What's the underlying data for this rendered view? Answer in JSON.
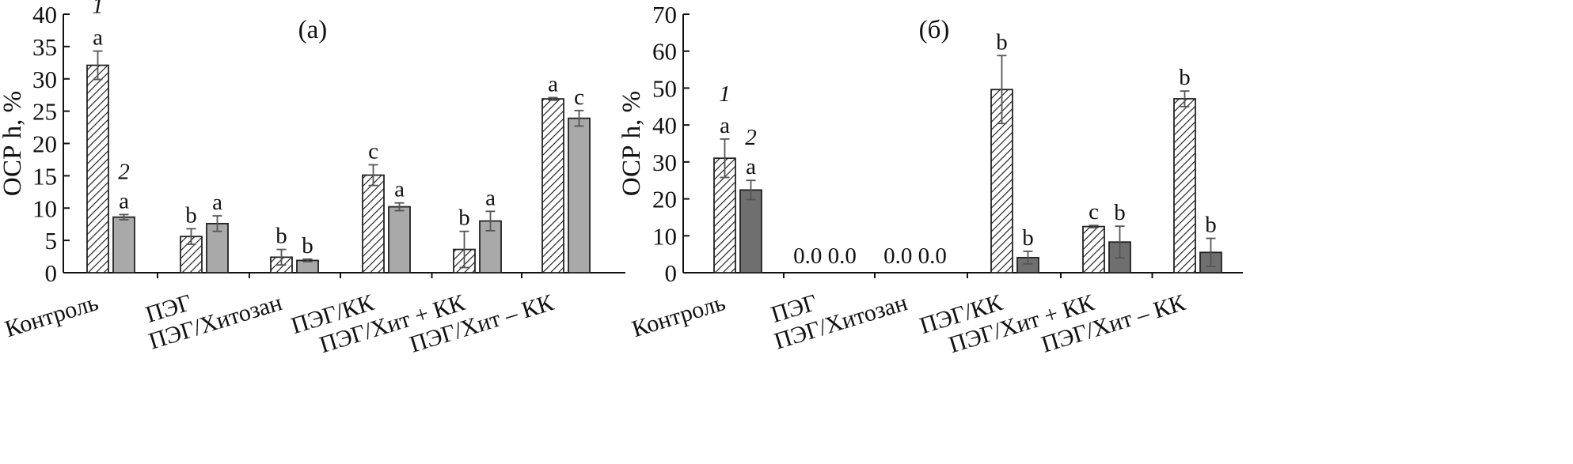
{
  "chart_data": [
    {
      "type": "bar",
      "panel_label": "(a)",
      "ylabel": "ОСР h, %",
      "ylim": [
        0,
        40
      ],
      "yticks": [
        "0",
        "5",
        "10",
        "15",
        "20",
        "25",
        "30",
        "35",
        "40"
      ],
      "categories": [
        "Контроль",
        "ПЭГ",
        "ПЭГ/Хитозан",
        "ПЭГ/КК",
        "ПЭГ/Хит + КК",
        "ПЭГ/Хит – КК"
      ],
      "series": [
        {
          "marker": "1",
          "pattern": "hatched",
          "values": [
            32.1,
            5.6,
            2.4,
            15.1,
            3.6,
            26.9
          ],
          "errors": [
            2.2,
            1.2,
            1.2,
            1.6,
            2.8,
            0.2
          ],
          "letters": [
            "a",
            "b",
            "b",
            "c",
            "b",
            "a"
          ]
        },
        {
          "marker": "2",
          "pattern": "solid",
          "color": "#a9a9a9",
          "values": [
            8.6,
            7.6,
            1.9,
            10.2,
            8.0,
            23.9
          ],
          "errors": [
            0.4,
            1.2,
            0.2,
            0.6,
            1.5,
            1.2
          ],
          "letters": [
            "a",
            "a",
            "b",
            "a",
            "a",
            "c"
          ]
        }
      ],
      "zero_labels": []
    },
    {
      "type": "bar",
      "panel_label": "(б)",
      "ylabel": "ОСР h, %",
      "ylim": [
        0,
        70
      ],
      "yticks": [
        "0",
        "10",
        "20",
        "30",
        "40",
        "50",
        "60",
        "70"
      ],
      "categories": [
        "Контроль",
        "ПЭГ",
        "ПЭГ/Хитозан",
        "ПЭГ/КК",
        "ПЭГ/Хит + КК",
        "ПЭГ/Хит – КК"
      ],
      "series": [
        {
          "marker": "1",
          "pattern": "hatched",
          "values": [
            31.0,
            0.0,
            0.0,
            49.6,
            12.5,
            47.1
          ],
          "errors": [
            5.2,
            0,
            0,
            9.2,
            0.3,
            2.1
          ],
          "letters": [
            "a",
            "",
            "",
            "b",
            "c",
            "b"
          ]
        },
        {
          "marker": "2",
          "pattern": "solid",
          "color": "#6f6f6f",
          "values": [
            22.4,
            0.0,
            0.0,
            4.1,
            8.3,
            5.5
          ],
          "errors": [
            2.6,
            0,
            0,
            1.7,
            4.3,
            3.8
          ],
          "letters": [
            "a",
            "",
            "",
            "b",
            "b",
            "b"
          ]
        }
      ],
      "zero_labels": [
        "0.0 0.0",
        "0.0 0.0"
      ]
    }
  ]
}
